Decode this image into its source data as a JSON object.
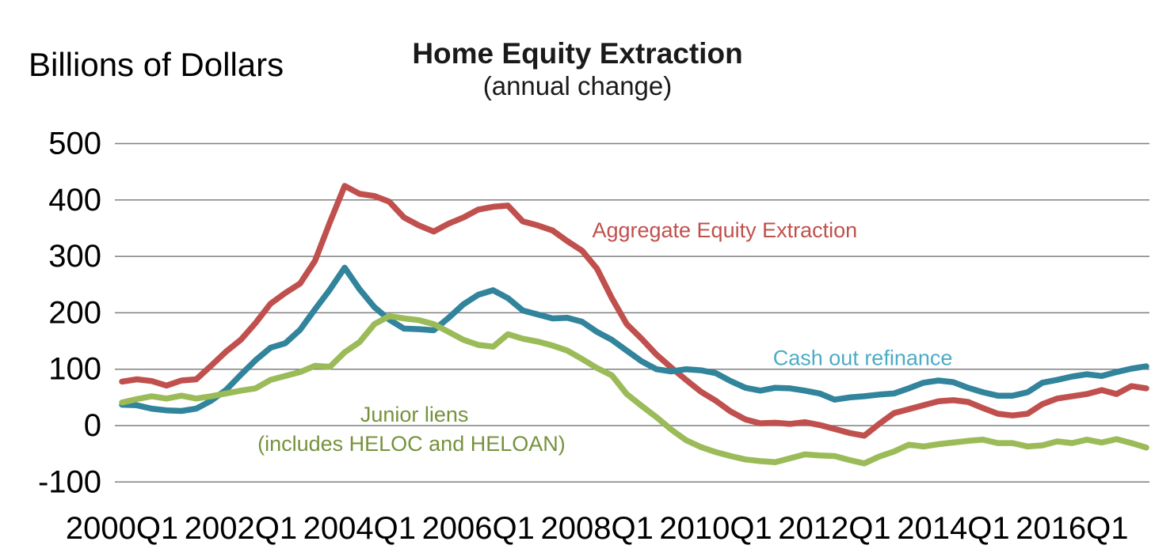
{
  "page": {
    "y_axis_caption": "Billions of Dollars",
    "title": "Home Equity Extraction",
    "subtitle": "(annual change)"
  },
  "chart_data": {
    "type": "line",
    "title": "Home Equity Extraction",
    "subtitle": "(annual change)",
    "ylabel": "Billions of Dollars",
    "x_unit": "quarterly, 2000Q1 through 2017Q2",
    "ylim": [
      -100,
      500
    ],
    "y_ticks": [
      500,
      400,
      300,
      200,
      100,
      0,
      -100
    ],
    "x_tick_labels": [
      "2000Q1",
      "2002Q1",
      "2004Q1",
      "2006Q1",
      "2008Q1",
      "2010Q1",
      "2012Q1",
      "2014Q1",
      "2016Q1"
    ],
    "x_tick_quarter_index": [
      0,
      8,
      16,
      24,
      32,
      40,
      48,
      56,
      64
    ],
    "grid": "horizontal",
    "gridline_color": "#7F7F7F",
    "background_color": "#FFFFFF",
    "series": [
      {
        "name": "Aggregate Equity Extraction",
        "color": "#C0504D",
        "label_color": "#C0504D",
        "values": [
          78,
          82,
          79,
          71,
          80,
          82,
          106,
          131,
          152,
          182,
          216,
          235,
          252,
          292,
          360,
          425,
          411,
          407,
          397,
          369,
          355,
          344,
          358,
          369,
          383,
          388,
          390,
          362,
          355,
          346,
          327,
          310,
          278,
          226,
          180,
          154,
          126,
          103,
          81,
          60,
          44,
          25,
          11,
          4,
          5,
          3,
          6,
          1,
          -6,
          -13,
          -18,
          3,
          22,
          29,
          36,
          43,
          45,
          42,
          31,
          21,
          18,
          21,
          38,
          48,
          52,
          56,
          63,
          56,
          70,
          66
        ]
      },
      {
        "name": "Cash out refinance",
        "color": "#31849B",
        "label_color": "#4BACC6",
        "values": [
          37,
          36,
          30,
          27,
          26,
          30,
          44,
          63,
          90,
          116,
          138,
          146,
          170,
          206,
          241,
          280,
          242,
          210,
          188,
          172,
          171,
          169,
          191,
          215,
          232,
          240,
          226,
          204,
          197,
          190,
          191,
          184,
          166,
          152,
          133,
          114,
          100,
          96,
          100,
          98,
          93,
          79,
          67,
          62,
          67,
          66,
          62,
          57,
          46,
          50,
          52,
          55,
          57,
          66,
          76,
          80,
          77,
          67,
          59,
          53,
          53,
          59,
          76,
          81,
          87,
          91,
          88,
          95,
          101,
          105
        ]
      },
      {
        "name": "Junior liens (includes HELOC and HELOAN)",
        "color": "#9BBB59",
        "label_color": "#76923C",
        "values": [
          41,
          47,
          52,
          48,
          53,
          48,
          52,
          57,
          62,
          66,
          81,
          88,
          95,
          106,
          104,
          130,
          148,
          180,
          194,
          190,
          187,
          180,
          166,
          152,
          143,
          140,
          162,
          154,
          149,
          142,
          133,
          118,
          102,
          89,
          56,
          35,
          15,
          -7,
          -26,
          -38,
          -47,
          -54,
          -60,
          -63,
          -65,
          -58,
          -51,
          -53,
          -54,
          -61,
          -67,
          -55,
          -46,
          -34,
          -37,
          -33,
          -30,
          -27,
          -25,
          -31,
          -31,
          -37,
          -35,
          -28,
          -31,
          -25,
          -30,
          -24,
          -31,
          -39
        ]
      }
    ],
    "annotations": [
      {
        "text": "Aggregate Equity Extraction",
        "color": "#C0504D",
        "quarter": 40.6,
        "value": 334
      },
      {
        "text": "Cash out refinance",
        "color": "#4BACC6",
        "quarter": 49.9,
        "value": 107
      },
      {
        "text": "Junior liens",
        "color": "#76923C",
        "quarter": 19.7,
        "value": 7
      },
      {
        "text": "(includes HELOC and HELOAN)",
        "color": "#76923C",
        "quarter": 19.5,
        "value": -45
      }
    ]
  }
}
